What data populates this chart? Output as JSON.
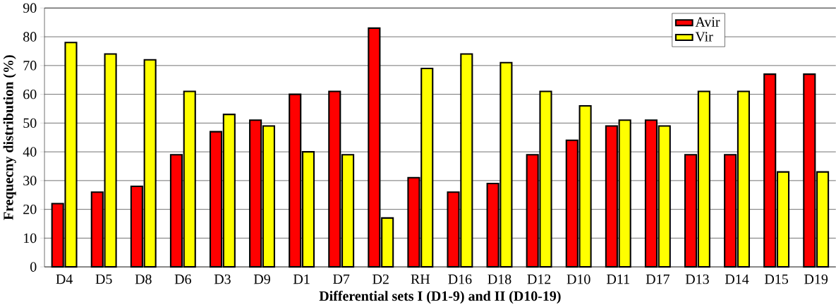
{
  "chart_data": {
    "type": "bar",
    "xlabel": "Differential sets I (D1-9) and II (D10-19)",
    "ylabel": "Frequecny distribution (%)",
    "categories": [
      "D4",
      "D5",
      "D8",
      "D6",
      "D3",
      "D9",
      "D1",
      "D7",
      "D2",
      "RH",
      "D16",
      "D18",
      "D12",
      "D10",
      "D11",
      "D17",
      "D13",
      "D14",
      "D15",
      "D19"
    ],
    "series": [
      {
        "name": "Avir",
        "color": "#ff0000",
        "values": [
          22,
          26,
          28,
          39,
          47,
          51,
          60,
          61,
          83,
          31,
          26,
          29,
          39,
          44,
          49,
          51,
          39,
          39,
          67,
          67
        ]
      },
      {
        "name": "Vir",
        "color": "#ffff00",
        "values": [
          78,
          74,
          72,
          61,
          53,
          49,
          40,
          39,
          17,
          69,
          74,
          71,
          61,
          56,
          51,
          49,
          61,
          61,
          33,
          33
        ]
      }
    ],
    "ylim": [
      0,
      90
    ],
    "yticks": [
      0,
      10,
      20,
      30,
      40,
      50,
      60,
      70,
      80,
      90
    ],
    "grid": "y",
    "legend": "top right"
  }
}
